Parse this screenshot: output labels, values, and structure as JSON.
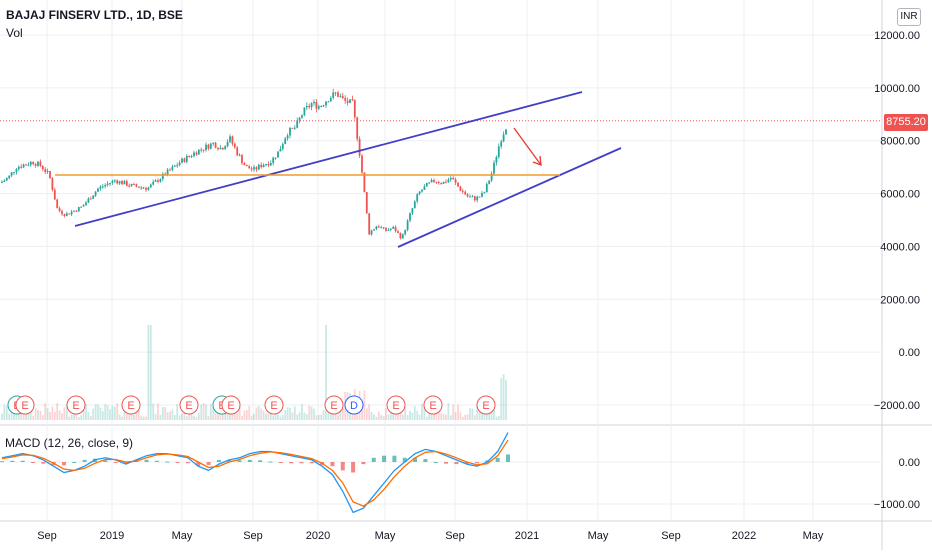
{
  "header": {
    "symbol": "BAJAJ FINSERV LTD., 1D, BSE",
    "volume_label": "Vol",
    "currency_badge": "INR",
    "last_price": "8755.20"
  },
  "macd_pane": {
    "label": "MACD (12, 26, close, 9)",
    "y_ticks": [
      "0.00",
      "−1000.00"
    ]
  },
  "colors": {
    "up": "#26a69a",
    "down": "#ef5350",
    "trendline": "#3f3fc8",
    "support": "#f29a2e",
    "arrow": "#e53935",
    "macd_line": "#2196f3",
    "signal_line": "#ff6d00",
    "grid": "#eceff3"
  },
  "chart_data": [
    {
      "type": "candlestick",
      "name": "price",
      "y_ticks": [
        "12000.00",
        "10000.00",
        "8000.00",
        "6000.00",
        "4000.00",
        "2000.00",
        "0.00",
        "−2000.00"
      ],
      "x_ticks": [
        "Sep",
        "2019",
        "May",
        "Sep",
        "2020",
        "May",
        "Sep",
        "2021",
        "May",
        "Sep",
        "2022",
        "May"
      ],
      "ylim": [
        -2000,
        12000
      ],
      "last_price": 8755.2,
      "series": [
        {
          "t": 0.0,
          "v": 6400
        },
        {
          "t": 0.01,
          "v": 6600
        },
        {
          "t": 0.02,
          "v": 7000
        },
        {
          "t": 0.04,
          "v": 7200
        },
        {
          "t": 0.05,
          "v": 7050
        },
        {
          "t": 0.06,
          "v": 6700
        },
        {
          "t": 0.07,
          "v": 5400
        },
        {
          "t": 0.08,
          "v": 5200
        },
        {
          "t": 0.1,
          "v": 5500
        },
        {
          "t": 0.12,
          "v": 6200
        },
        {
          "t": 0.14,
          "v": 6500
        },
        {
          "t": 0.16,
          "v": 6300
        },
        {
          "t": 0.18,
          "v": 6200
        },
        {
          "t": 0.2,
          "v": 6700
        },
        {
          "t": 0.22,
          "v": 7200
        },
        {
          "t": 0.24,
          "v": 7600
        },
        {
          "t": 0.26,
          "v": 7900
        },
        {
          "t": 0.27,
          "v": 7700
        },
        {
          "t": 0.28,
          "v": 8100
        },
        {
          "t": 0.29,
          "v": 7500
        },
        {
          "t": 0.3,
          "v": 7000
        },
        {
          "t": 0.31,
          "v": 6900
        },
        {
          "t": 0.32,
          "v": 7100
        },
        {
          "t": 0.33,
          "v": 7200
        },
        {
          "t": 0.34,
          "v": 7600
        },
        {
          "t": 0.35,
          "v": 8300
        },
        {
          "t": 0.36,
          "v": 8500
        },
        {
          "t": 0.37,
          "v": 9100
        },
        {
          "t": 0.38,
          "v": 9400
        },
        {
          "t": 0.39,
          "v": 9300
        },
        {
          "t": 0.4,
          "v": 9600
        },
        {
          "t": 0.41,
          "v": 9800
        },
        {
          "t": 0.42,
          "v": 9500
        },
        {
          "t": 0.43,
          "v": 9400
        },
        {
          "t": 0.44,
          "v": 7200
        },
        {
          "t": 0.45,
          "v": 4500
        },
        {
          "t": 0.46,
          "v": 4800
        },
        {
          "t": 0.47,
          "v": 4600
        },
        {
          "t": 0.48,
          "v": 4700
        },
        {
          "t": 0.49,
          "v": 4300
        },
        {
          "t": 0.5,
          "v": 5200
        },
        {
          "t": 0.51,
          "v": 6000
        },
        {
          "t": 0.52,
          "v": 6300
        },
        {
          "t": 0.53,
          "v": 6500
        },
        {
          "t": 0.54,
          "v": 6400
        },
        {
          "t": 0.55,
          "v": 6600
        },
        {
          "t": 0.56,
          "v": 6200
        },
        {
          "t": 0.57,
          "v": 5900
        },
        {
          "t": 0.58,
          "v": 5800
        },
        {
          "t": 0.59,
          "v": 6000
        },
        {
          "t": 0.6,
          "v": 6800
        },
        {
          "t": 0.61,
          "v": 8000
        },
        {
          "t": 0.62,
          "v": 8755
        }
      ]
    },
    {
      "type": "line",
      "name": "MACD (12, 26, close, 9)",
      "y_ticks": [
        "0.00",
        "−1000.00"
      ],
      "ylim": [
        -1300,
        800
      ],
      "series": [
        {
          "name": "macd",
          "values": [
            100,
            150,
            200,
            150,
            50,
            -100,
            -250,
            -200,
            -100,
            50,
            100,
            50,
            -50,
            50,
            150,
            200,
            200,
            150,
            100,
            -100,
            -200,
            -50,
            50,
            100,
            200,
            250,
            250,
            200,
            150,
            100,
            50,
            -100,
            -300,
            -700,
            -1200,
            -1100,
            -800,
            -500,
            -200,
            0,
            200,
            300,
            250,
            150,
            50,
            -50,
            -100,
            0,
            250,
            700
          ]
        },
        {
          "name": "signal",
          "values": [
            80,
            120,
            170,
            160,
            90,
            -30,
            -170,
            -200,
            -150,
            -30,
            60,
            60,
            0,
            20,
            100,
            170,
            190,
            170,
            130,
            0,
            -130,
            -100,
            0,
            60,
            150,
            210,
            240,
            220,
            180,
            130,
            80,
            -30,
            -200,
            -500,
            -950,
            -1050,
            -900,
            -650,
            -350,
            -100,
            100,
            230,
            250,
            190,
            100,
            0,
            -70,
            -40,
            150,
            520
          ]
        }
      ]
    }
  ],
  "annotations": {
    "earnings_badges": [
      "E",
      "E",
      "E",
      "E",
      "E",
      "E",
      "E",
      "E",
      "E",
      "E",
      "E"
    ],
    "dividend_badges": [
      "D"
    ]
  }
}
